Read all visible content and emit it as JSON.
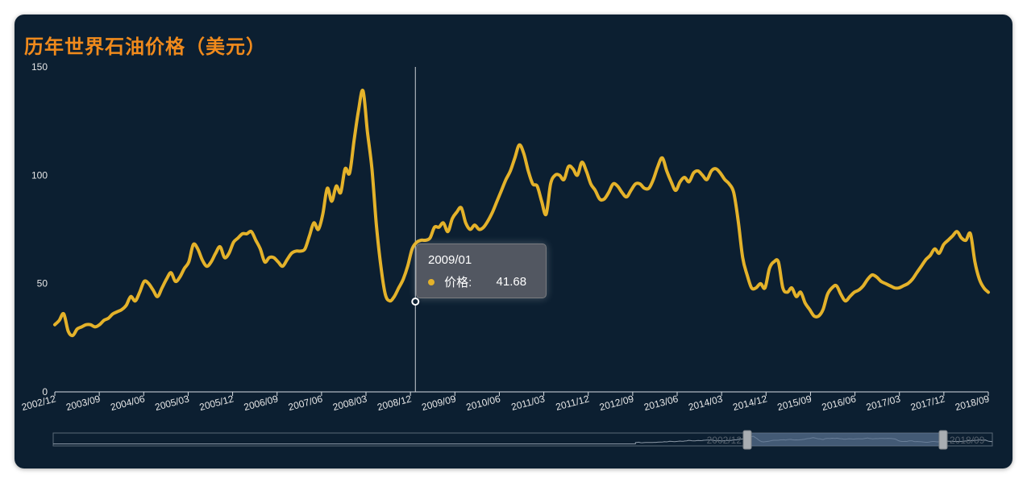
{
  "title": "历年世界石油价格（美元）",
  "colors": {
    "background": "#0c1f31",
    "line": "#e4b22a",
    "title": "#f08a1c",
    "axis_text": "#e6e6e6",
    "slider_fill": "#5b7393"
  },
  "tooltip": {
    "date": "2009/01",
    "label": "价格:",
    "value": "41.68"
  },
  "slider": {
    "start_label": "2002/12",
    "end_label": "2018/09"
  },
  "chart_data": {
    "type": "line",
    "title": "历年世界石油价格（美元）",
    "xlabel": "",
    "ylabel": "",
    "ylim": [
      0,
      150
    ],
    "yticks": [
      "0",
      "50",
      "100",
      "150"
    ],
    "xticks": [
      "2002/12",
      "2003/09",
      "2004/06",
      "2005/03",
      "2005/12",
      "2006/09",
      "2007/06",
      "2008/03",
      "2008/12",
      "2009/09",
      "2010/06",
      "2011/03",
      "2011/12",
      "2012/09",
      "2013/06",
      "2014/03",
      "2014/12",
      "2015/09",
      "2016/06",
      "2017/03",
      "2017/12",
      "2018/09"
    ],
    "grid": false,
    "legend": "none",
    "x_start": "2002/12",
    "x_end": "2018/09",
    "series": [
      {
        "values": [
          31,
          33,
          36,
          28,
          26,
          29,
          30,
          31,
          31,
          30,
          31,
          33,
          34,
          36,
          37,
          38,
          40,
          44,
          42,
          46,
          51,
          50,
          47,
          44,
          48,
          52,
          55,
          51,
          53,
          57,
          60,
          68,
          66,
          61,
          58,
          60,
          64,
          67,
          62,
          64,
          69,
          71,
          73,
          73,
          74,
          70,
          66,
          60,
          62,
          62,
          60,
          58,
          61,
          64,
          65,
          65,
          66,
          72,
          78,
          75,
          82,
          94,
          88,
          95,
          92,
          103,
          101,
          116,
          130,
          139,
          120,
          103,
          77,
          58,
          45,
          42,
          44,
          48,
          52,
          58,
          66,
          69,
          70,
          70,
          71,
          76,
          76,
          78,
          74,
          80,
          83,
          85,
          78,
          75,
          77,
          75,
          76,
          79,
          83,
          88,
          93,
          98,
          102,
          108,
          114,
          110,
          102,
          96,
          95,
          88,
          82,
          96,
          100,
          100,
          98,
          104,
          103,
          100,
          106,
          102,
          96,
          93,
          89,
          89,
          92,
          96,
          95,
          92,
          90,
          93,
          96,
          96,
          94,
          94,
          98,
          104,
          108,
          102,
          97,
          93,
          97,
          99,
          97,
          101,
          102,
          100,
          98,
          102,
          103,
          101,
          98,
          96,
          92,
          79,
          62,
          54,
          48,
          48,
          50,
          48,
          57,
          60,
          60,
          48,
          46,
          48,
          44,
          46,
          41,
          38,
          35,
          35,
          38,
          45,
          48,
          49,
          45,
          42,
          44,
          46,
          47,
          49,
          52,
          54,
          53,
          51,
          50,
          49,
          48,
          48,
          49,
          50,
          52,
          55,
          58,
          61,
          63,
          66,
          64,
          68,
          70,
          72,
          74,
          71,
          70,
          73,
          60,
          52,
          48,
          46
        ]
      }
    ],
    "highlight": {
      "x": "2009/01",
      "value": 41.68
    }
  }
}
